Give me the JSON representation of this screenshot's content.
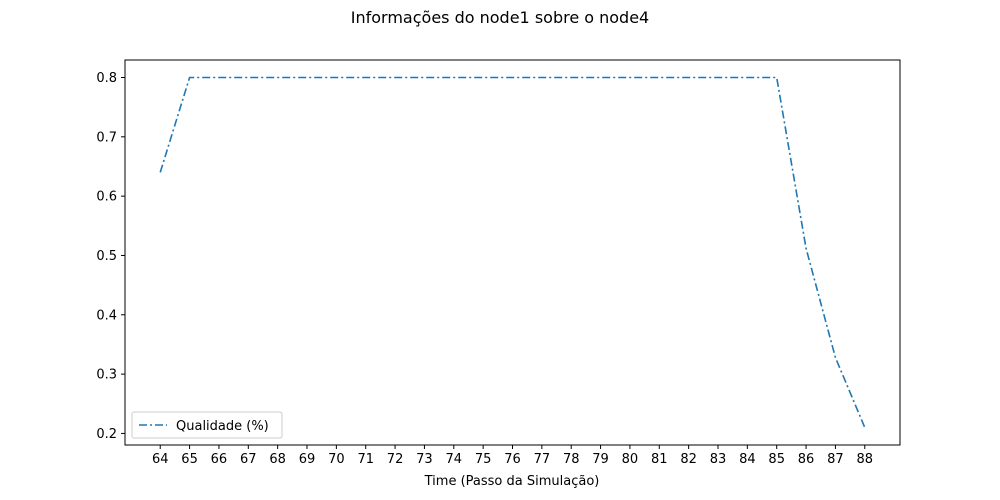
{
  "chart_data": {
    "type": "line",
    "title": "Informações do node1 sobre o node4",
    "xlabel": "Time (Passo da Simulação)",
    "ylabel": "",
    "x": [
      64,
      65,
      66,
      67,
      68,
      69,
      70,
      71,
      72,
      73,
      74,
      75,
      76,
      77,
      78,
      79,
      80,
      81,
      82,
      83,
      84,
      85,
      86,
      87,
      88
    ],
    "series": [
      {
        "name": "Qualidade (%)",
        "color": "#1f77b4",
        "linestyle": "dashdot",
        "values": [
          0.64,
          0.8,
          0.8,
          0.8,
          0.8,
          0.8,
          0.8,
          0.8,
          0.8,
          0.8,
          0.8,
          0.8,
          0.8,
          0.8,
          0.8,
          0.8,
          0.8,
          0.8,
          0.8,
          0.8,
          0.8,
          0.8,
          0.512,
          0.328,
          0.21
        ]
      }
    ],
    "xticks": [
      "64",
      "65",
      "66",
      "67",
      "68",
      "69",
      "70",
      "71",
      "72",
      "73",
      "74",
      "75",
      "76",
      "77",
      "78",
      "79",
      "80",
      "81",
      "82",
      "83",
      "84",
      "85",
      "86",
      "87",
      "88"
    ],
    "yticks": [
      "0.2",
      "0.3",
      "0.4",
      "0.5",
      "0.6",
      "0.7",
      "0.8"
    ],
    "ytick_values": [
      0.2,
      0.3,
      0.4,
      0.5,
      0.6,
      0.7,
      0.8
    ],
    "xlim": [
      62.8,
      89.2
    ],
    "ylim": [
      0.1805,
      0.8295
    ],
    "grid": false,
    "legend_position": "lower-left"
  }
}
